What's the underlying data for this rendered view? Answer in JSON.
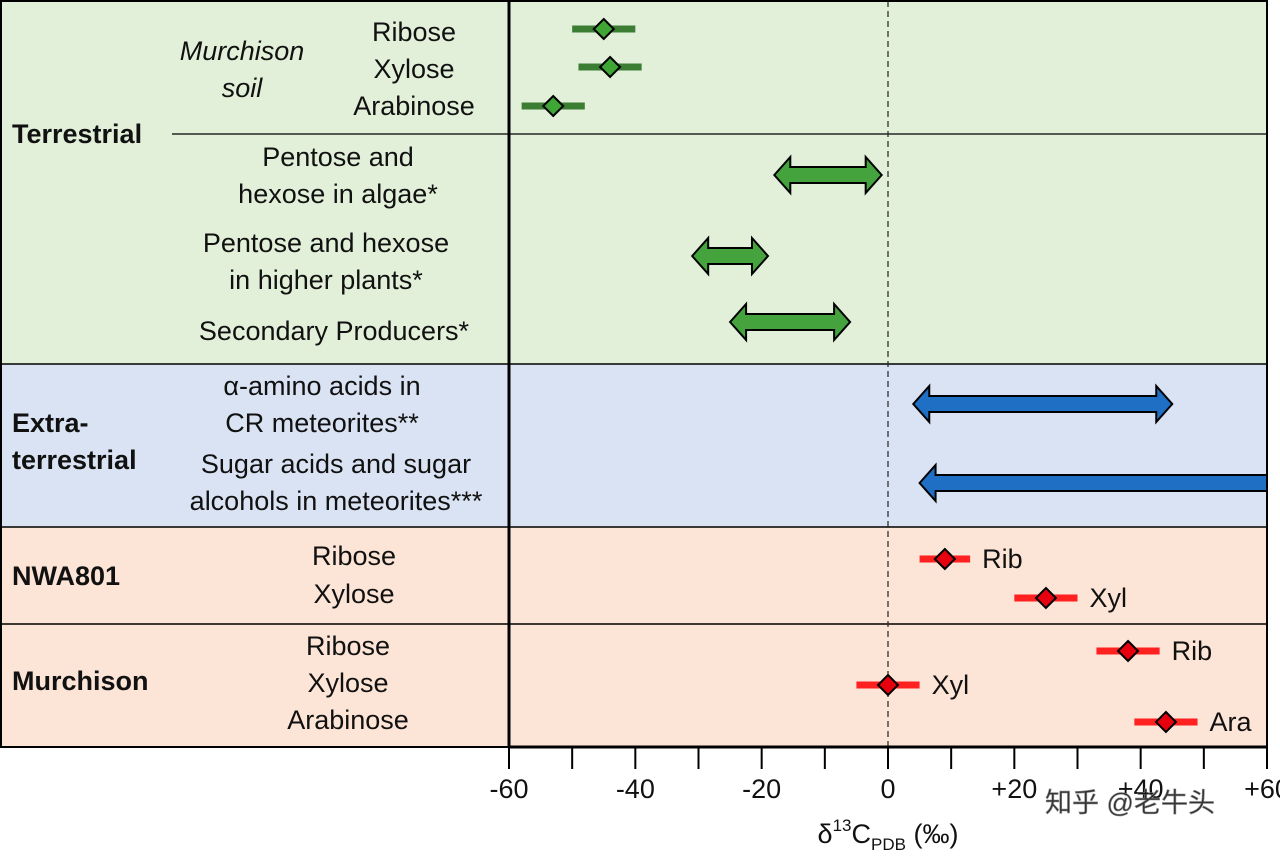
{
  "chart_data": {
    "type": "range",
    "xlim": [
      -60,
      60
    ],
    "xticks": [
      {
        "value": -60,
        "label": "-60"
      },
      {
        "value": -40,
        "label": "-40"
      },
      {
        "value": -20,
        "label": "-20"
      },
      0,
      {
        "value": 20,
        "label": "+20"
      },
      {
        "value": 40,
        "label": "+40"
      },
      {
        "value": 60,
        "label": "+60"
      }
    ],
    "xminor_ticks": [
      -50,
      -30,
      -10,
      10,
      30,
      50
    ],
    "xlabel": [
      "δ",
      "13",
      "C",
      "PDB",
      " (‰)"
    ],
    "reference_line": 0,
    "watermark": "知乎 @老牛头",
    "groups": [
      {
        "name": [
          "Terrestrial"
        ],
        "band_color": "#e2f0d9",
        "sublabel": [
          "Murchison",
          "soil"
        ],
        "rows": [
          {
            "label": [
              "Ribose"
            ],
            "value": -45,
            "error": 5,
            "color": "#3fa535",
            "bar_color": "#3a7d33"
          },
          {
            "label": [
              "Xylose"
            ],
            "value": -44,
            "error": 5,
            "color": "#3fa535",
            "bar_color": "#3a7d33"
          },
          {
            "label": [
              "Arabinose"
            ],
            "value": -53,
            "error": 5,
            "color": "#3fa535",
            "bar_color": "#3a7d33"
          },
          {
            "label": [
              "Pentose and",
              "hexose in algae*"
            ],
            "range": [
              -18,
              -1
            ],
            "color": "#44a33c"
          },
          {
            "label": [
              "Pentose and hexose",
              "in higher plants*"
            ],
            "range": [
              -31,
              -19
            ],
            "color": "#44a33c"
          },
          {
            "label": [
              "Secondary Producers*"
            ],
            "range": [
              -25,
              -6
            ],
            "color": "#44a33c"
          }
        ]
      },
      {
        "name": [
          "Extra-",
          "terrestrial"
        ],
        "band_color": "#dae3f3",
        "rows": [
          {
            "label": [
              "α-amino acids in",
              "CR meteorites**"
            ],
            "range": [
              4,
              45
            ],
            "color": "#1f6fc4"
          },
          {
            "label": [
              "Sugar acids and sugar",
              "alcohols in meteorites***"
            ],
            "range": [
              5,
              60
            ],
            "heads": "left",
            "color": "#1f6fc4"
          }
        ]
      },
      {
        "name": [
          "NWA801"
        ],
        "band_color": "#fce4d6",
        "rows": [
          {
            "label": [
              "Ribose"
            ],
            "value": 9,
            "error": 4,
            "tag": "Rib",
            "color": "#e8000f",
            "bar_color": "#ff2020"
          },
          {
            "label": [
              "Xylose"
            ],
            "value": 25,
            "error": 5,
            "tag": "Xyl",
            "color": "#e8000f",
            "bar_color": "#ff2020"
          }
        ]
      },
      {
        "name": [
          "Murchison"
        ],
        "band_color": "#fce4d6",
        "rows": [
          {
            "label": [
              "Ribose"
            ],
            "value": 38,
            "error": 5,
            "tag": "Rib",
            "color": "#e8000f",
            "bar_color": "#ff2020"
          },
          {
            "label": [
              "Xylose"
            ],
            "value": 0,
            "error": 5,
            "tag": "Xyl",
            "color": "#e8000f",
            "bar_color": "#ff2020"
          },
          {
            "label": [
              "Arabinose"
            ],
            "value": 44,
            "error": 5,
            "tag": "Ara",
            "color": "#e8000f",
            "bar_color": "#ff2020"
          }
        ]
      }
    ]
  }
}
